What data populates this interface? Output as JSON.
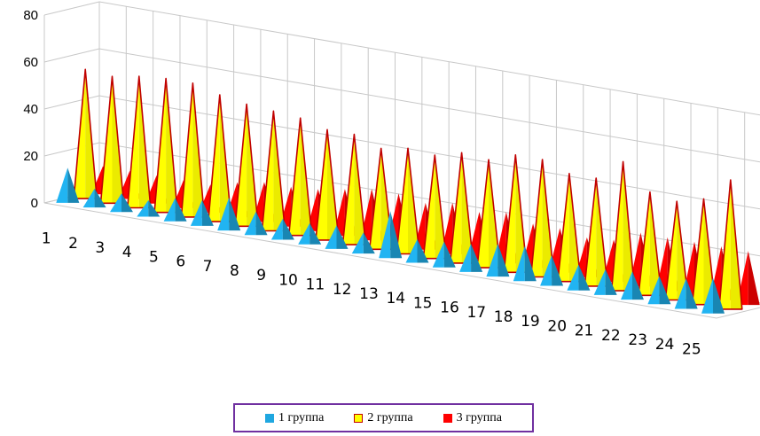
{
  "chart_data": {
    "type": "bar",
    "style": "3d-cone",
    "categories": [
      "1",
      "2",
      "3",
      "4",
      "5",
      "6",
      "7",
      "8",
      "9",
      "10",
      "11",
      "12",
      "13",
      "14",
      "15",
      "16",
      "17",
      "18",
      "19",
      "20",
      "21",
      "22",
      "23",
      "24",
      "25"
    ],
    "series": [
      {
        "name": "1 группа",
        "color": "#1fa7e0",
        "values": [
          15,
          8,
          8,
          7,
          10,
          11,
          14,
          10,
          9,
          9,
          10,
          9,
          20,
          10,
          11,
          12,
          14,
          15,
          13,
          11,
          11,
          12,
          12,
          13,
          15
        ]
      },
      {
        "name": "2 группа",
        "color": "#ffff00",
        "values": [
          55,
          54,
          56,
          57,
          57,
          54,
          52,
          51,
          50,
          47,
          47,
          43,
          45,
          44,
          47,
          46,
          50,
          50,
          46,
          46,
          55,
          44,
          42,
          45,
          55
        ]
      },
      {
        "name": "3 группа",
        "color": "#ff0000",
        "values": [
          12,
          12,
          12,
          12,
          12,
          15,
          17,
          17,
          18,
          20,
          22,
          22,
          20,
          22,
          20,
          22,
          19,
          19,
          17,
          18,
          23,
          23,
          23,
          23,
          23
        ]
      }
    ],
    "ylim": [
      0,
      80
    ],
    "yticks": [
      "0",
      "20",
      "40",
      "60",
      "80"
    ],
    "grid": true,
    "legend_position": "bottom"
  }
}
